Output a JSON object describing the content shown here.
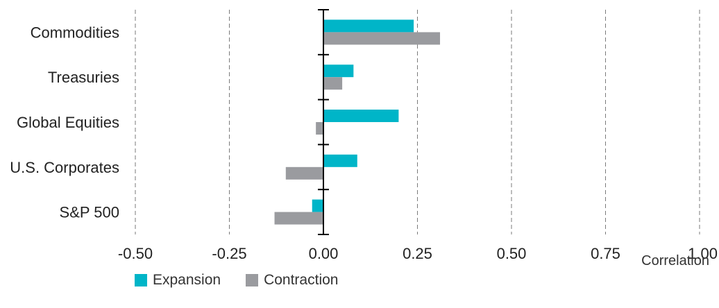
{
  "chart_data": {
    "type": "bar",
    "orientation": "horizontal",
    "categories": [
      "Commodities",
      "Treasuries",
      "Global Equities",
      "U.S. Corporates",
      "S&P 500"
    ],
    "series": [
      {
        "name": "Expansion",
        "color": "#00B5C8",
        "values": [
          0.24,
          0.08,
          0.2,
          0.09,
          -0.03
        ]
      },
      {
        "name": "Contraction",
        "color": "#9A9B9F",
        "values": [
          0.31,
          0.05,
          -0.02,
          -0.1,
          -0.13
        ]
      }
    ],
    "xlim": [
      -0.5,
      1.0
    ],
    "x_ticks": [
      -0.5,
      -0.25,
      0.0,
      0.25,
      0.5,
      0.75,
      1.0
    ],
    "x_tick_labels": [
      "-0.50",
      "-0.25",
      "0.00",
      "0.25",
      "0.50",
      "0.75",
      "1.00"
    ],
    "xlabel": "Correlation",
    "grid": "vertical-dashed",
    "legend_position": "bottom-left"
  }
}
